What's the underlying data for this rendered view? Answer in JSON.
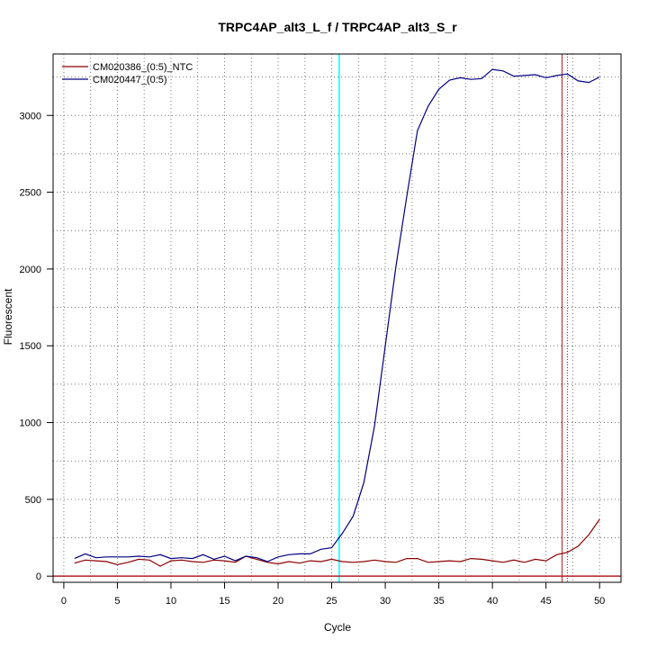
{
  "chart_data": {
    "type": "line",
    "title": "TRPC4AP_alt3_L_f / TRPC4AP_alt3_S_r",
    "xlabel": "Cycle",
    "ylabel": "Fluorescent",
    "xlim": [
      -1,
      52
    ],
    "ylim": [
      -40,
      3400
    ],
    "x_ticks": [
      0,
      5,
      10,
      15,
      20,
      25,
      30,
      35,
      40,
      45,
      50
    ],
    "y_ticks": [
      0,
      500,
      1000,
      1500,
      2000,
      2500,
      3000
    ],
    "grid": true,
    "legend_position": "top-left",
    "threshold_y": 0,
    "threshold_color": "#b22222",
    "vlines": [
      {
        "x": 25.7,
        "color": "#00ffff"
      },
      {
        "x": 46.5,
        "color": "#b22222"
      },
      {
        "x": 47.0,
        "color": "#3333cc"
      }
    ],
    "series": [
      {
        "name": "CM020386_(0:5)_NTC",
        "color": "#8b0000",
        "x": [
          1,
          2,
          3,
          4,
          5,
          6,
          7,
          8,
          9,
          10,
          11,
          12,
          13,
          14,
          15,
          16,
          17,
          18,
          19,
          20,
          21,
          22,
          23,
          24,
          25,
          26,
          27,
          28,
          29,
          30,
          31,
          32,
          33,
          34,
          35,
          36,
          37,
          38,
          39,
          40,
          41,
          42,
          43,
          44,
          45,
          46,
          47,
          48,
          49,
          50
        ],
        "values": [
          85,
          105,
          100,
          95,
          75,
          90,
          110,
          105,
          65,
          100,
          105,
          95,
          90,
          105,
          100,
          90,
          130,
          110,
          90,
          80,
          95,
          85,
          100,
          95,
          110,
          95,
          90,
          95,
          105,
          95,
          90,
          115,
          115,
          90,
          95,
          100,
          95,
          115,
          110,
          100,
          90,
          105,
          90,
          110,
          100,
          140,
          155,
          195,
          270,
          370
        ]
      },
      {
        "name": "CM020447_(0:5)",
        "color": "#000080",
        "x": [
          1,
          2,
          3,
          4,
          5,
          6,
          7,
          8,
          9,
          10,
          11,
          12,
          13,
          14,
          15,
          16,
          17,
          18,
          19,
          20,
          21,
          22,
          23,
          24,
          25,
          26,
          27,
          28,
          29,
          30,
          31,
          32,
          33,
          34,
          35,
          36,
          37,
          38,
          39,
          40,
          41,
          42,
          43,
          44,
          45,
          46,
          47,
          48,
          49,
          50
        ],
        "values": [
          115,
          145,
          120,
          125,
          125,
          125,
          130,
          125,
          140,
          115,
          120,
          115,
          140,
          110,
          130,
          100,
          130,
          120,
          95,
          125,
          140,
          145,
          145,
          175,
          185,
          280,
          390,
          610,
          980,
          1500,
          2020,
          2470,
          2900,
          3060,
          3170,
          3230,
          3245,
          3235,
          3240,
          3300,
          3290,
          3255,
          3260,
          3265,
          3245,
          3260,
          3270,
          3225,
          3215,
          3250
        ]
      }
    ]
  }
}
